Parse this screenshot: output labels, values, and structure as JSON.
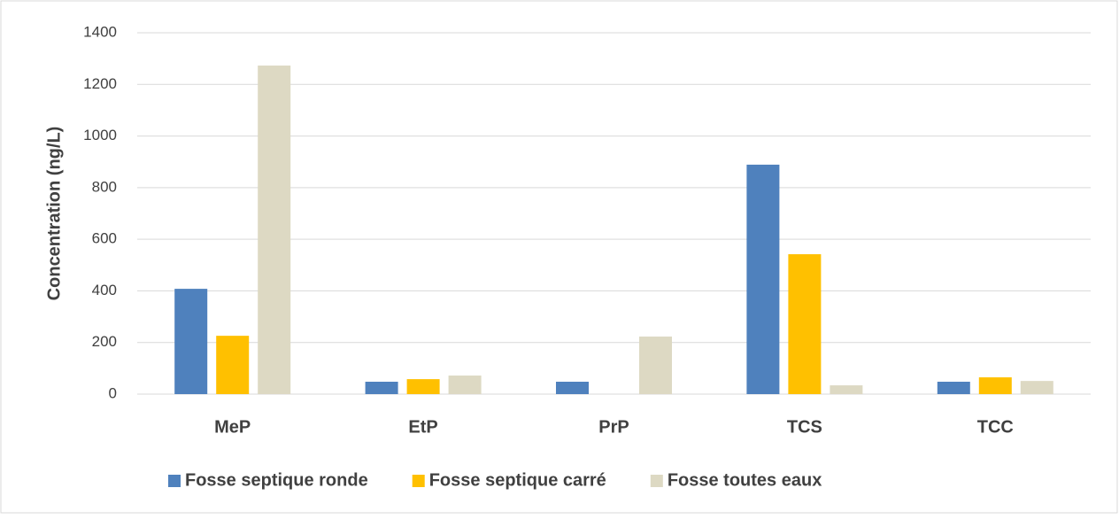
{
  "chart_data": {
    "type": "bar",
    "y_label": "Concentration (ng/L)",
    "categories": [
      "MeP",
      "EtP",
      "PrP",
      "TCS",
      "TCC"
    ],
    "series": [
      {
        "name": "Fosse septique ronde",
        "color": "#4f81bd",
        "values": [
          408,
          48,
          48,
          889,
          48
        ]
      },
      {
        "name": "Fosse septique carré",
        "color": "#ffc000",
        "values": [
          226,
          58,
          null,
          542,
          65
        ]
      },
      {
        "name": "Fosse toutes eaux",
        "color": "#ddd9c3",
        "values": [
          1273,
          72,
          223,
          34,
          51
        ]
      }
    ],
    "ylim": [
      0,
      1400
    ],
    "yticks": [
      0,
      200,
      400,
      600,
      800,
      1000,
      1200,
      1400
    ],
    "grid": true,
    "legend": "bottom"
  }
}
